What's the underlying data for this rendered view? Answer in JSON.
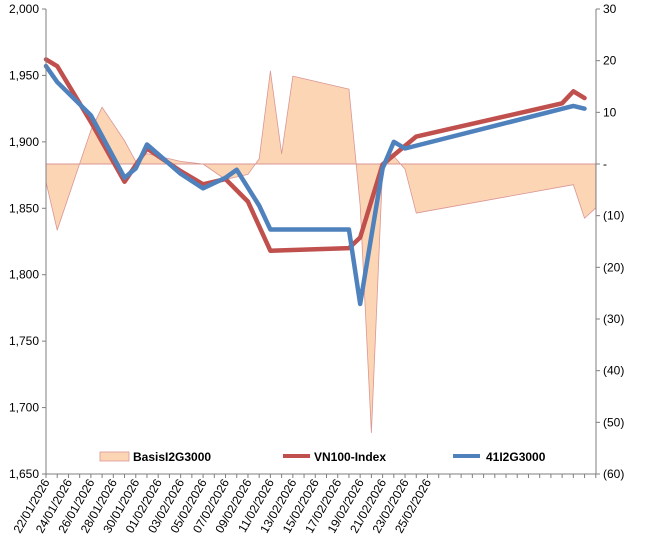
{
  "chart_data": {
    "type": "line",
    "x_labels": [
      "22/01/2026",
      "24/01/2026",
      "26/01/2026",
      "28/01/2026",
      "30/01/2026",
      "01/02/2026",
      "03/02/2026",
      "05/02/2026",
      "07/02/2026",
      "09/02/2026",
      "11/02/2026",
      "13/02/2026",
      "15/02/2026",
      "17/02/2026",
      "19/02/2026",
      "21/02/2026",
      "23/02/2026",
      "25/02/2026"
    ],
    "x_range": [
      "22/01/2026",
      "25/02/2026"
    ],
    "left_axis": {
      "min": 1650,
      "max": 2000,
      "step": 50,
      "tick_labels": [
        "1,650",
        "1,700",
        "1,750",
        "1,800",
        "1,850",
        "1,900",
        "1,950",
        "2,000"
      ]
    },
    "right_axis": {
      "min": -60,
      "max": 30,
      "step": 10,
      "tick_labels": [
        "(60)",
        "(50)",
        "(40)",
        "(30)",
        "(20)",
        "(10)",
        "-",
        "10",
        "20",
        "30"
      ]
    },
    "grid": false,
    "legend_position": "bottom-inside",
    "series": [
      {
        "name": "BasisI2G3000",
        "kind": "area",
        "axis": "right",
        "color_fill": "#fcd5b5",
        "color_line": "#d99694",
        "points": [
          {
            "d": 0,
            "v": -3.5
          },
          {
            "d": 1,
            "v": -12.8
          },
          {
            "d": 4,
            "v": 6.5
          },
          {
            "d": 5,
            "v": 11
          },
          {
            "d": 7,
            "v": 4.5
          },
          {
            "d": 8,
            "v": 0.5
          },
          {
            "d": 9,
            "v": 2
          },
          {
            "d": 12,
            "v": 0.5
          },
          {
            "d": 14,
            "v": 0
          },
          {
            "d": 16,
            "v": -3
          },
          {
            "d": 18,
            "v": -2
          },
          {
            "d": 19,
            "v": 1
          },
          {
            "d": 20,
            "v": 18
          },
          {
            "d": 21,
            "v": 2
          },
          {
            "d": 22,
            "v": 17
          },
          {
            "d": 27,
            "v": 14.5
          },
          {
            "d": 28,
            "v": -8
          },
          {
            "d": 29,
            "v": -52
          },
          {
            "d": 30,
            "v": -1
          },
          {
            "d": 31,
            "v": 1.5
          },
          {
            "d": 32,
            "v": -1
          },
          {
            "d": 33,
            "v": -9.5
          },
          {
            "d": 47,
            "v": -4
          },
          {
            "d": 48,
            "v": -10.5
          },
          {
            "d": 49,
            "v": -8.5
          }
        ]
      },
      {
        "name": "VN100-Index",
        "kind": "line",
        "axis": "left",
        "color": "#c0504d",
        "points": [
          {
            "d": 0,
            "v": 1962
          },
          {
            "d": 1,
            "v": 1957
          },
          {
            "d": 4,
            "v": 1915
          },
          {
            "d": 7,
            "v": 1870
          },
          {
            "d": 9,
            "v": 1895
          },
          {
            "d": 12,
            "v": 1878
          },
          {
            "d": 14,
            "v": 1868
          },
          {
            "d": 16,
            "v": 1872
          },
          {
            "d": 18,
            "v": 1855
          },
          {
            "d": 20,
            "v": 1818
          },
          {
            "d": 27,
            "v": 1820
          },
          {
            "d": 28,
            "v": 1828
          },
          {
            "d": 30,
            "v": 1883
          },
          {
            "d": 32,
            "v": 1897
          },
          {
            "d": 33,
            "v": 1904
          },
          {
            "d": 46,
            "v": 1929
          },
          {
            "d": 47,
            "v": 1938
          },
          {
            "d": 48,
            "v": 1933
          }
        ]
      },
      {
        "name": "41I2G3000",
        "kind": "line",
        "axis": "left",
        "color": "#4f81bd",
        "points": [
          {
            "d": 0,
            "v": 1957
          },
          {
            "d": 1,
            "v": 1945
          },
          {
            "d": 4,
            "v": 1920
          },
          {
            "d": 7,
            "v": 1873
          },
          {
            "d": 8,
            "v": 1880
          },
          {
            "d": 9,
            "v": 1898
          },
          {
            "d": 12,
            "v": 1876
          },
          {
            "d": 14,
            "v": 1865
          },
          {
            "d": 16,
            "v": 1873
          },
          {
            "d": 17,
            "v": 1879
          },
          {
            "d": 19,
            "v": 1852
          },
          {
            "d": 20,
            "v": 1834
          },
          {
            "d": 23,
            "v": 1834
          },
          {
            "d": 24,
            "v": 1834
          },
          {
            "d": 27,
            "v": 1834
          },
          {
            "d": 28,
            "v": 1778
          },
          {
            "d": 30,
            "v": 1880
          },
          {
            "d": 31,
            "v": 1900
          },
          {
            "d": 32,
            "v": 1895
          },
          {
            "d": 47,
            "v": 1927
          },
          {
            "d": 48,
            "v": 1925
          }
        ]
      }
    ]
  }
}
